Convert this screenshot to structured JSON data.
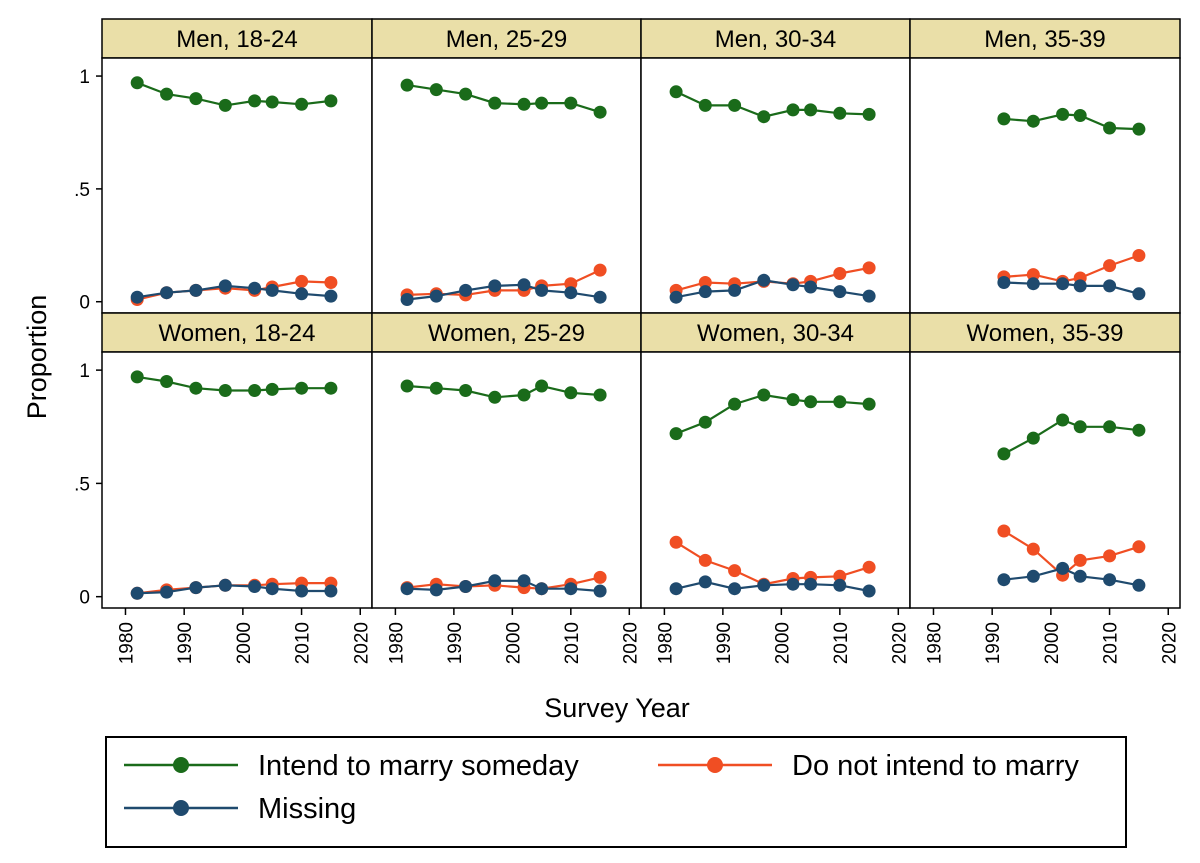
{
  "chart_data": {
    "type": "line",
    "ylabel": "Proportion",
    "xlabel": "Survey Year",
    "xlim": [
      1976,
      2022
    ],
    "ylim": [
      -0.05,
      1.08
    ],
    "xticks": [
      1980,
      1990,
      2000,
      2010,
      2020
    ],
    "xtick_labels": [
      "1980",
      "1990",
      "2000",
      "2010",
      "2020"
    ],
    "yticks": [
      0,
      0.5,
      1
    ],
    "ytick_labels": [
      "0",
      ".5",
      "1"
    ],
    "series_colors": {
      "intend": "#1a6b1a",
      "not_intend": "#f04e23",
      "missing": "#1f4a6e"
    },
    "strip_color": "#eadfa8",
    "legend": {
      "placement": "bottom",
      "entries": [
        {
          "key": "intend",
          "label": "Intend to marry someday"
        },
        {
          "key": "not_intend",
          "label": "Do not intend to marry"
        },
        {
          "key": "missing",
          "label": "Missing"
        }
      ]
    },
    "panels": [
      {
        "title": "Men, 18-24",
        "x": [
          1982,
          1987,
          1992,
          1997,
          2002,
          2005,
          2010,
          2015
        ],
        "intend": [
          0.97,
          0.92,
          0.9,
          0.87,
          0.89,
          0.885,
          0.875,
          0.89
        ],
        "not_intend": [
          0.01,
          0.04,
          0.05,
          0.06,
          0.05,
          0.065,
          0.09,
          0.085
        ],
        "missing": [
          0.02,
          0.04,
          0.05,
          0.07,
          0.06,
          0.05,
          0.035,
          0.025
        ]
      },
      {
        "title": "Men, 25-29",
        "x": [
          1982,
          1987,
          1992,
          1997,
          2002,
          2005,
          2010,
          2015
        ],
        "intend": [
          0.96,
          0.94,
          0.92,
          0.88,
          0.875,
          0.88,
          0.88,
          0.84
        ],
        "not_intend": [
          0.03,
          0.035,
          0.03,
          0.05,
          0.05,
          0.07,
          0.08,
          0.14
        ],
        "missing": [
          0.01,
          0.025,
          0.05,
          0.07,
          0.075,
          0.05,
          0.04,
          0.02
        ]
      },
      {
        "title": "Men, 30-34",
        "x": [
          1982,
          1987,
          1992,
          1997,
          2002,
          2005,
          2010,
          2015
        ],
        "intend": [
          0.93,
          0.87,
          0.87,
          0.82,
          0.85,
          0.85,
          0.835,
          0.83
        ],
        "not_intend": [
          0.05,
          0.085,
          0.08,
          0.09,
          0.08,
          0.09,
          0.125,
          0.15
        ],
        "missing": [
          0.02,
          0.045,
          0.05,
          0.095,
          0.075,
          0.065,
          0.045,
          0.025
        ]
      },
      {
        "title": "Men, 35-39",
        "x": [
          1992,
          1997,
          2002,
          2005,
          2010,
          2015
        ],
        "intend": [
          0.81,
          0.8,
          0.83,
          0.825,
          0.77,
          0.765
        ],
        "not_intend": [
          0.11,
          0.12,
          0.09,
          0.105,
          0.16,
          0.205
        ],
        "missing": [
          0.085,
          0.08,
          0.08,
          0.07,
          0.07,
          0.035
        ]
      },
      {
        "title": "Women, 18-24",
        "x": [
          1982,
          1987,
          1992,
          1997,
          2002,
          2005,
          2010,
          2015
        ],
        "intend": [
          0.97,
          0.95,
          0.92,
          0.91,
          0.91,
          0.915,
          0.92,
          0.92
        ],
        "not_intend": [
          0.015,
          0.03,
          0.04,
          0.05,
          0.05,
          0.055,
          0.06,
          0.06
        ],
        "missing": [
          0.015,
          0.02,
          0.04,
          0.05,
          0.045,
          0.035,
          0.025,
          0.025
        ]
      },
      {
        "title": "Women, 25-29",
        "x": [
          1982,
          1987,
          1992,
          1997,
          2002,
          2005,
          2010,
          2015
        ],
        "intend": [
          0.93,
          0.92,
          0.91,
          0.88,
          0.89,
          0.93,
          0.9,
          0.89
        ],
        "not_intend": [
          0.04,
          0.055,
          0.045,
          0.05,
          0.04,
          0.035,
          0.055,
          0.085
        ],
        "missing": [
          0.035,
          0.03,
          0.045,
          0.07,
          0.07,
          0.035,
          0.035,
          0.025
        ]
      },
      {
        "title": "Women, 30-34",
        "x": [
          1982,
          1987,
          1992,
          1997,
          2002,
          2005,
          2010,
          2015
        ],
        "intend": [
          0.72,
          0.77,
          0.85,
          0.89,
          0.87,
          0.86,
          0.86,
          0.85
        ],
        "not_intend": [
          0.24,
          0.16,
          0.115,
          0.055,
          0.08,
          0.085,
          0.09,
          0.13
        ],
        "missing": [
          0.035,
          0.065,
          0.035,
          0.05,
          0.055,
          0.055,
          0.05,
          0.025
        ]
      },
      {
        "title": "Women, 35-39",
        "x": [
          1992,
          1997,
          2002,
          2005,
          2010,
          2015
        ],
        "intend": [
          0.63,
          0.7,
          0.78,
          0.75,
          0.75,
          0.735
        ],
        "not_intend": [
          0.29,
          0.21,
          0.095,
          0.16,
          0.18,
          0.22
        ],
        "missing": [
          0.075,
          0.09,
          0.125,
          0.09,
          0.075,
          0.05
        ]
      }
    ]
  }
}
